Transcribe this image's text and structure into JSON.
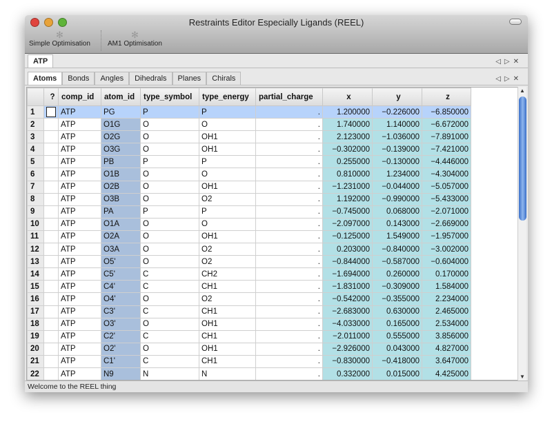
{
  "window": {
    "title": "Restraints Editor Especially Ligands (REEL)"
  },
  "toolbar": {
    "simple_opt": "Simple Optimisation",
    "am1_opt": "AM1 Optimisation"
  },
  "molecule_tabs": [
    {
      "label": "ATP",
      "active": true
    }
  ],
  "tabs": [
    {
      "label": "Atoms",
      "active": true
    },
    {
      "label": "Bonds"
    },
    {
      "label": "Angles"
    },
    {
      "label": "Dihedrals"
    },
    {
      "label": "Planes"
    },
    {
      "label": "Chirals"
    }
  ],
  "table": {
    "columns": [
      "",
      "?",
      "comp_id",
      "atom_id",
      "type_symbol",
      "type_energy",
      "partial_charge",
      "x",
      "y",
      "z"
    ],
    "selected_row": 1,
    "rows": [
      [
        "1",
        "",
        "ATP",
        "PG",
        "P",
        "P",
        ".",
        "1.200000",
        "−0.226000",
        "−6.850000"
      ],
      [
        "2",
        "",
        "ATP",
        "O1G",
        "O",
        "O",
        ".",
        "1.740000",
        "1.140000",
        "−6.672000"
      ],
      [
        "3",
        "",
        "ATP",
        "O2G",
        "O",
        "OH1",
        ".",
        "2.123000",
        "−1.036000",
        "−7.891000"
      ],
      [
        "4",
        "",
        "ATP",
        "O3G",
        "O",
        "OH1",
        ".",
        "−0.302000",
        "−0.139000",
        "−7.421000"
      ],
      [
        "5",
        "",
        "ATP",
        "PB",
        "P",
        "P",
        ".",
        "0.255000",
        "−0.130000",
        "−4.446000"
      ],
      [
        "6",
        "",
        "ATP",
        "O1B",
        "O",
        "O",
        ".",
        "0.810000",
        "1.234000",
        "−4.304000"
      ],
      [
        "7",
        "",
        "ATP",
        "O2B",
        "O",
        "OH1",
        ".",
        "−1.231000",
        "−0.044000",
        "−5.057000"
      ],
      [
        "8",
        "",
        "ATP",
        "O3B",
        "O",
        "O2",
        ".",
        "1.192000",
        "−0.990000",
        "−5.433000"
      ],
      [
        "9",
        "",
        "ATP",
        "PA",
        "P",
        "P",
        ".",
        "−0.745000",
        "0.068000",
        "−2.071000"
      ],
      [
        "10",
        "",
        "ATP",
        "O1A",
        "O",
        "O",
        ".",
        "−2.097000",
        "0.143000",
        "−2.669000"
      ],
      [
        "11",
        "",
        "ATP",
        "O2A",
        "O",
        "OH1",
        ".",
        "−0.125000",
        "1.549000",
        "−1.957000"
      ],
      [
        "12",
        "",
        "ATP",
        "O3A",
        "O",
        "O2",
        ".",
        "0.203000",
        "−0.840000",
        "−3.002000"
      ],
      [
        "13",
        "",
        "ATP",
        "O5'",
        "O",
        "O2",
        ".",
        "−0.844000",
        "−0.587000",
        "−0.604000"
      ],
      [
        "14",
        "",
        "ATP",
        "C5'",
        "C",
        "CH2",
        ".",
        "−1.694000",
        "0.260000",
        "0.170000"
      ],
      [
        "15",
        "",
        "ATP",
        "C4'",
        "C",
        "CH1",
        ".",
        "−1.831000",
        "−0.309000",
        "1.584000"
      ],
      [
        "16",
        "",
        "ATP",
        "O4'",
        "O",
        "O2",
        ".",
        "−0.542000",
        "−0.355000",
        "2.234000"
      ],
      [
        "17",
        "",
        "ATP",
        "C3'",
        "C",
        "CH1",
        ".",
        "−2.683000",
        "0.630000",
        "2.465000"
      ],
      [
        "18",
        "",
        "ATP",
        "O3'",
        "O",
        "OH1",
        ".",
        "−4.033000",
        "0.165000",
        "2.534000"
      ],
      [
        "19",
        "",
        "ATP",
        "C2'",
        "C",
        "CH1",
        ".",
        "−2.011000",
        "0.555000",
        "3.856000"
      ],
      [
        "20",
        "",
        "ATP",
        "O2'",
        "O",
        "OH1",
        ".",
        "−2.926000",
        "0.043000",
        "4.827000"
      ],
      [
        "21",
        "",
        "ATP",
        "C1'",
        "C",
        "CH1",
        ".",
        "−0.830000",
        "−0.418000",
        "3.647000"
      ],
      [
        "22",
        "",
        "ATP",
        "N9",
        "N",
        "N",
        ".",
        "0.332000",
        "0.015000",
        "4.425000"
      ]
    ]
  },
  "status": "Welcome to the REEL thing"
}
